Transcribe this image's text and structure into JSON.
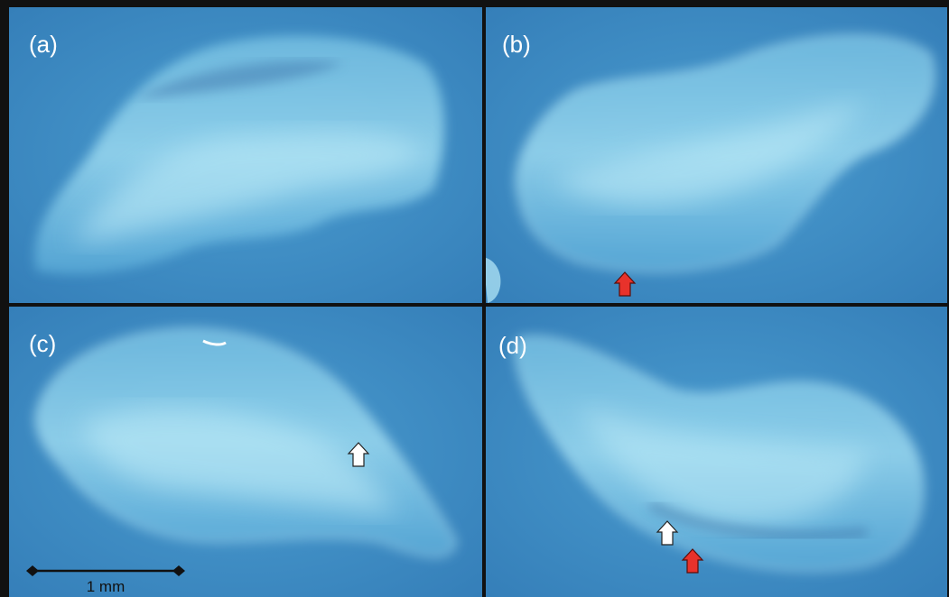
{
  "panels": [
    {
      "label": "(a)"
    },
    {
      "label": "(b)"
    },
    {
      "label": "(c)"
    },
    {
      "label": "(d)"
    }
  ],
  "scale_bar": {
    "label": "1 mm"
  }
}
